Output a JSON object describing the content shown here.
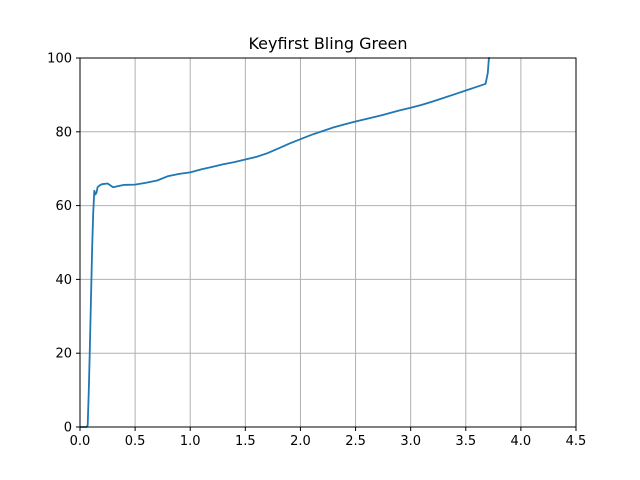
{
  "chart_data": {
    "type": "line",
    "title": "Keyfirst Bling Green",
    "xlabel": "",
    "ylabel": "",
    "xlim": [
      0,
      4.5
    ],
    "ylim": [
      0,
      100
    ],
    "xticks": [
      "0.0",
      "0.5",
      "1.0",
      "1.5",
      "2.0",
      "2.5",
      "3.0",
      "3.5",
      "4.0",
      "4.5"
    ],
    "yticks": [
      "0",
      "20",
      "40",
      "60",
      "80",
      "100"
    ],
    "grid": true,
    "series": [
      {
        "color": "#1f77b4",
        "x": [
          0.0,
          0.05,
          0.06,
          0.07,
          0.08,
          0.09,
          0.1,
          0.11,
          0.12,
          0.13,
          0.14,
          0.15,
          0.16,
          0.18,
          0.2,
          0.25,
          0.3,
          0.35,
          0.4,
          0.5,
          0.6,
          0.7,
          0.8,
          0.85,
          0.9,
          1.0,
          1.1,
          1.2,
          1.3,
          1.4,
          1.5,
          1.6,
          1.7,
          1.8,
          1.9,
          2.0,
          2.1,
          2.2,
          2.3,
          2.4,
          2.5,
          2.6,
          2.7,
          2.8,
          2.9,
          3.0,
          3.1,
          3.2,
          3.3,
          3.4,
          3.5,
          3.6,
          3.68,
          3.7,
          3.71,
          3.72
        ],
        "y": [
          0,
          0,
          0,
          0.5,
          10,
          22,
          35,
          48,
          58,
          64,
          63,
          63.5,
          65,
          65.5,
          65.8,
          66,
          65,
          65.3,
          65.6,
          65.7,
          66.2,
          66.8,
          68,
          68.3,
          68.6,
          69,
          69.8,
          70.5,
          71.2,
          71.8,
          72.5,
          73.2,
          74.2,
          75.5,
          76.8,
          78,
          79.2,
          80.2,
          81.2,
          82,
          82.8,
          83.5,
          84.2,
          85,
          85.8,
          86.5,
          87.3,
          88.2,
          89.2,
          90.2,
          91.2,
          92.2,
          93,
          96,
          100,
          100
        ]
      }
    ]
  }
}
